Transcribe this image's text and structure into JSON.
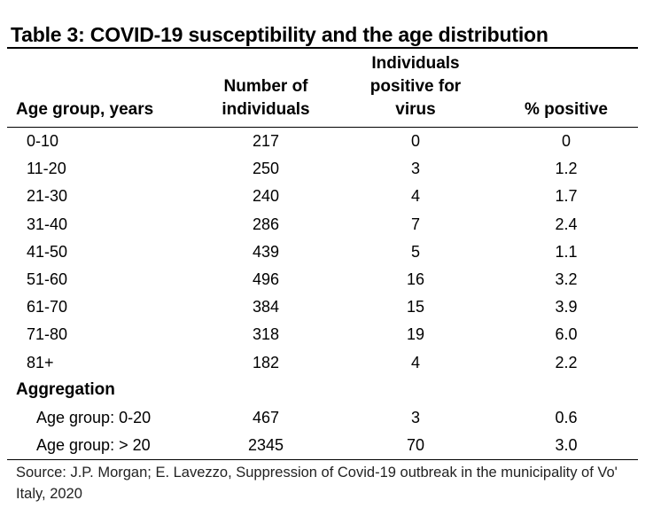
{
  "title": "Table 3: COVID-19 susceptibility and the age distribution",
  "headers": {
    "age": "Age group, years",
    "number_l1": "Number of",
    "number_l2": "individuals",
    "positive_l1": "Individuals",
    "positive_l2": "positive for",
    "positive_l3": "virus",
    "percent": "% positive"
  },
  "rows": [
    {
      "age": "0-10",
      "number": "217",
      "positive": "0",
      "percent": "0"
    },
    {
      "age": "11-20",
      "number": "250",
      "positive": "3",
      "percent": "1.2"
    },
    {
      "age": "21-30",
      "number": "240",
      "positive": "4",
      "percent": "1.7"
    },
    {
      "age": "31-40",
      "number": "286",
      "positive": "7",
      "percent": "2.4"
    },
    {
      "age": "41-50",
      "number": "439",
      "positive": "5",
      "percent": "1.1"
    },
    {
      "age": "51-60",
      "number": "496",
      "positive": "16",
      "percent": "3.2"
    },
    {
      "age": "61-70",
      "number": "384",
      "positive": "15",
      "percent": "3.9"
    },
    {
      "age": "71-80",
      "number": "318",
      "positive": "19",
      "percent": "6.0"
    },
    {
      "age": "81+",
      "number": "182",
      "positive": "4",
      "percent": "2.2"
    }
  ],
  "aggregation": {
    "label": "Aggregation",
    "rows": [
      {
        "age": "Age group: 0-20",
        "number": "467",
        "positive": "3",
        "percent": "0.6"
      },
      {
        "age": "Age group: > 20",
        "number": "2345",
        "positive": "70",
        "percent": "3.0"
      }
    ]
  },
  "source": "Source: J.P. Morgan; E. Lavezzo, Suppression of Covid-19 outbreak in the municipality of Vo' Italy, 2020"
}
